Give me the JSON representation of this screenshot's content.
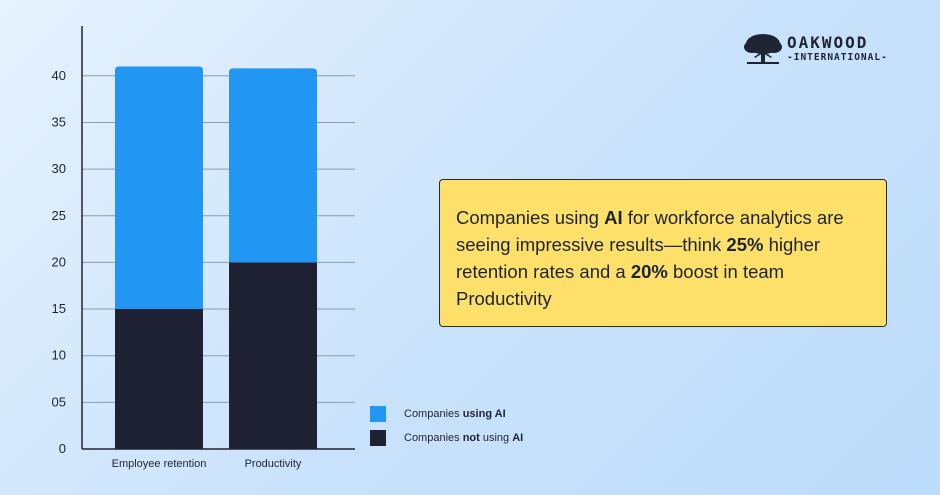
{
  "brand": {
    "name": "OAKWOOD",
    "subtitle": "-INTERNATIONAL-",
    "icon": "oak-tree-icon"
  },
  "callout": {
    "segments": [
      {
        "text": "Companies using ",
        "bold": false
      },
      {
        "text": "AI",
        "bold": true
      },
      {
        "text": " for workforce analytics are seeing impressive results—think ",
        "bold": false
      },
      {
        "text": "25%",
        "bold": true
      },
      {
        "text": " higher retention rates and a ",
        "bold": false
      },
      {
        "text": "20%",
        "bold": true
      },
      {
        "text": " boost in team Productivity",
        "bold": false
      }
    ],
    "background": "#fde06a"
  },
  "legend": [
    {
      "series": "using",
      "parts": [
        {
          "text": "Companies ",
          "bold": false
        },
        {
          "text": "using AI",
          "bold": true
        }
      ]
    },
    {
      "series": "not_using",
      "parts": [
        {
          "text": "Companies ",
          "bold": false
        },
        {
          "text": "not",
          "bold": true
        },
        {
          "text": " using ",
          "bold": false
        },
        {
          "text": "AI",
          "bold": true
        }
      ]
    }
  ],
  "chart_data": {
    "type": "bar",
    "stacked": true,
    "categories": [
      "Employee retention",
      "Productivity"
    ],
    "series": [
      {
        "name": "Companies not using AI",
        "values": [
          15,
          20
        ],
        "color": "#1e2131"
      },
      {
        "name": "Companies using AI",
        "values": [
          26,
          20.8
        ],
        "color": "#2196f3"
      }
    ],
    "ylim": [
      0,
      45
    ],
    "yticks": [
      0,
      5,
      10,
      15,
      20,
      25,
      30,
      35,
      40
    ],
    "ytick_labels": [
      "0",
      "05",
      "10",
      "15",
      "20",
      "25",
      "30",
      "35",
      "40"
    ],
    "title": "",
    "xlabel": "",
    "ylabel": "",
    "grid": true,
    "legend_position": "bottom-right"
  }
}
